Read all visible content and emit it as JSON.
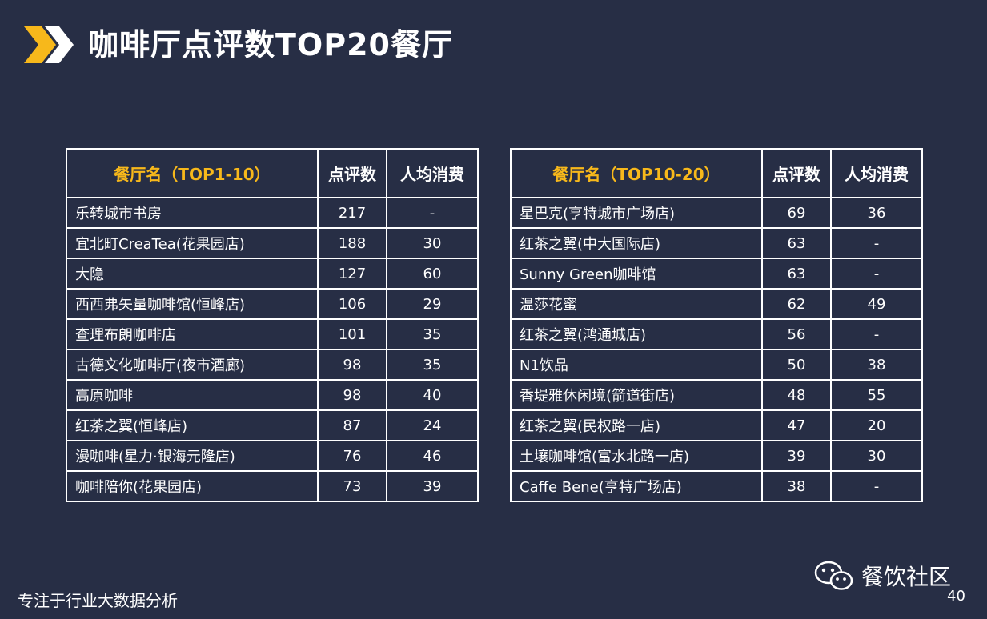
{
  "header": {
    "title": "咖啡厅点评数TOP20餐厅"
  },
  "tables": [
    {
      "headers": [
        "餐厅名（TOP1-10）",
        "点评数",
        "人均消费"
      ],
      "rows": [
        [
          "乐转城市书房",
          "217",
          "-"
        ],
        [
          "宜北町CreaTea(花果园店)",
          "188",
          "30"
        ],
        [
          "大隐",
          "127",
          "60"
        ],
        [
          "西西弗矢量咖啡馆(恒峰店)",
          "106",
          "29"
        ],
        [
          "查理布朗咖啡店",
          "101",
          "35"
        ],
        [
          "古德文化咖啡厅(夜市酒廊)",
          "98",
          "35"
        ],
        [
          "高原咖啡",
          "98",
          "40"
        ],
        [
          "红茶之翼(恒峰店)",
          "87",
          "24"
        ],
        [
          "漫咖啡(星力·银海元隆店)",
          "76",
          "46"
        ],
        [
          "咖啡陪你(花果园店)",
          "73",
          "39"
        ]
      ]
    },
    {
      "headers": [
        "餐厅名（TOP10-20）",
        "点评数",
        "人均消费"
      ],
      "rows": [
        [
          "星巴克(亨特城市广场店)",
          "69",
          "36"
        ],
        [
          "红茶之翼(中大国际店)",
          "63",
          "-"
        ],
        [
          "Sunny Green咖啡馆",
          "63",
          "-"
        ],
        [
          "温莎花蜜",
          "62",
          "49"
        ],
        [
          "红茶之翼(鸿通城店)",
          "56",
          "-"
        ],
        [
          "N1饮品",
          "50",
          "38"
        ],
        [
          "香堤雅休闲境(箭道街店)",
          "48",
          "55"
        ],
        [
          "红茶之翼(民权路一店)",
          "47",
          "20"
        ],
        [
          "土壤咖啡馆(富水北路一店)",
          "39",
          "30"
        ],
        [
          "Caffe Bene(亨特广场店)",
          "38",
          "-"
        ]
      ]
    }
  ],
  "footer": {
    "tagline": "专注于行业大数据分析",
    "brand": "餐饮社区",
    "page_number": "40"
  },
  "colors": {
    "background": "#272e45",
    "accent": "#f7b81b",
    "text": "#ffffff"
  },
  "icons": {
    "title": "double-chevron-icon",
    "brand": "wechat-icon"
  }
}
